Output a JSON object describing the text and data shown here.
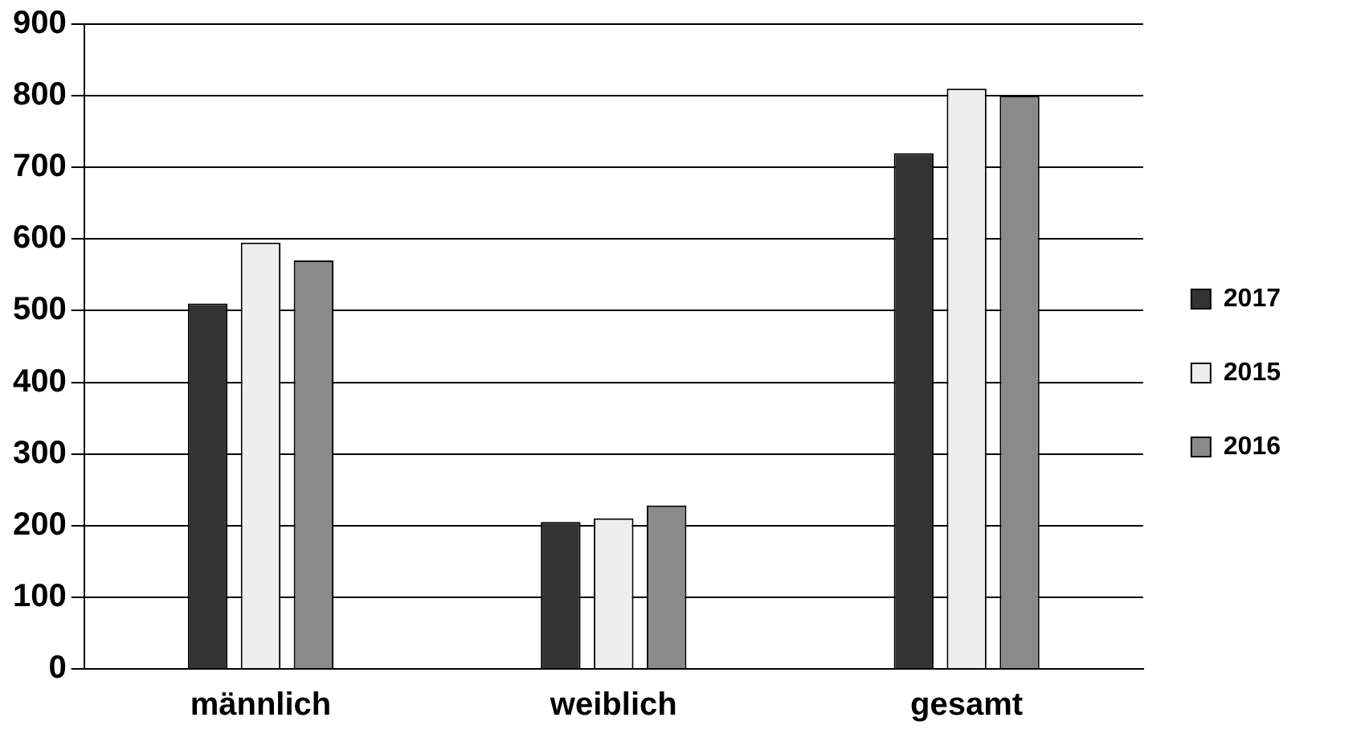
{
  "chart_data": {
    "type": "bar",
    "categories": [
      "männlich",
      "weiblich",
      "gesamt"
    ],
    "series": [
      {
        "name": "2017",
        "color": "#333333",
        "values": [
          510,
          205,
          720
        ]
      },
      {
        "name": "2015",
        "color": "#eeeeee",
        "values": [
          595,
          210,
          810
        ]
      },
      {
        "name": "2016",
        "color": "#8a8a8a",
        "values": [
          570,
          228,
          800
        ]
      }
    ],
    "ylim": [
      0,
      900
    ],
    "yticks": [
      0,
      100,
      200,
      300,
      400,
      500,
      600,
      700,
      800,
      900
    ],
    "grid": "y",
    "legend": "right"
  }
}
